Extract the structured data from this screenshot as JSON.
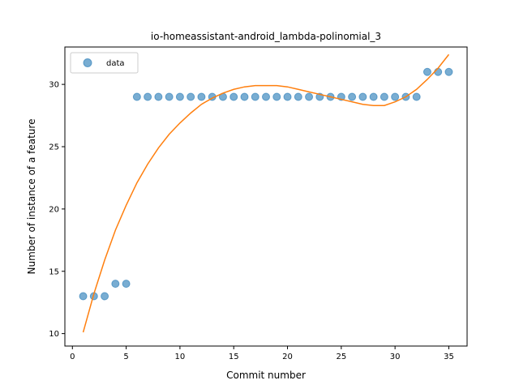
{
  "chart_data": {
    "type": "scatter",
    "title": "io-homeassistant-android_lambda-polinomial_3",
    "xlabel": "Commit number",
    "ylabel": "Number of instance of a feature",
    "xlim": [
      -0.7,
      36.7
    ],
    "ylim": [
      9.0,
      33.0
    ],
    "xticks": [
      0,
      5,
      10,
      15,
      20,
      25,
      30,
      35
    ],
    "yticks": [
      10,
      15,
      20,
      25,
      30
    ],
    "legend_position": "upper-left",
    "grid": false,
    "series": [
      {
        "name": "data",
        "kind": "markers",
        "color": "#1f77b4",
        "x": [
          1,
          2,
          3,
          4,
          5,
          6,
          7,
          8,
          9,
          10,
          11,
          12,
          13,
          14,
          15,
          16,
          17,
          18,
          19,
          20,
          21,
          22,
          23,
          24,
          25,
          26,
          27,
          28,
          29,
          30,
          31,
          32,
          33,
          34,
          35
        ],
        "y": [
          13,
          13,
          13,
          14,
          14,
          29,
          29,
          29,
          29,
          29,
          29,
          29,
          29,
          29,
          29,
          29,
          29,
          29,
          29,
          29,
          29,
          29,
          29,
          29,
          29,
          29,
          29,
          29,
          29,
          29,
          29,
          29,
          31,
          31,
          31
        ]
      },
      {
        "kind": "line",
        "color": "#ff7f0e",
        "x": [
          1,
          2,
          3,
          4,
          5,
          6,
          7,
          8,
          9,
          10,
          11,
          12,
          13,
          14,
          15,
          16,
          17,
          18,
          19,
          20,
          21,
          22,
          23,
          24,
          25,
          26,
          27,
          28,
          29,
          30,
          31,
          32,
          33,
          34,
          35
        ],
        "y": [
          10.1,
          13.2,
          15.9,
          18.3,
          20.3,
          22.1,
          23.6,
          24.9,
          26.0,
          26.9,
          27.7,
          28.4,
          28.9,
          29.3,
          29.6,
          29.8,
          29.9,
          29.9,
          29.9,
          29.8,
          29.6,
          29.4,
          29.2,
          29.0,
          28.8,
          28.6,
          28.4,
          28.3,
          28.3,
          28.6,
          29.0,
          29.6,
          30.4,
          31.3,
          32.4
        ]
      }
    ]
  }
}
